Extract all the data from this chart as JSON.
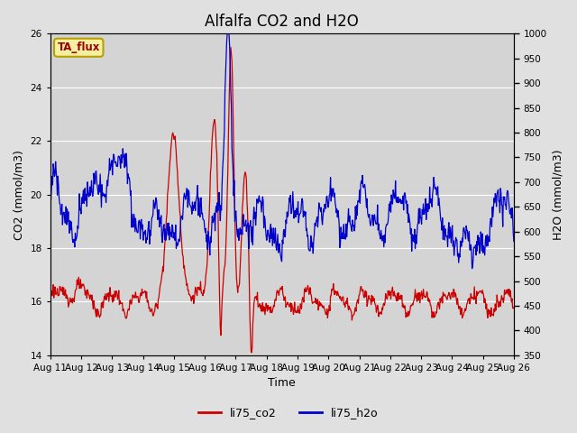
{
  "title": "Alfalfa CO2 and H2O",
  "xlabel": "Time",
  "ylabel_left": "CO2 (mmol/m3)",
  "ylabel_right": "H2O (mmol/m3)",
  "ylim_left": [
    14,
    26
  ],
  "ylim_right": [
    350,
    1000
  ],
  "yticks_left": [
    14,
    16,
    18,
    20,
    22,
    24,
    26
  ],
  "yticks_right": [
    350,
    400,
    450,
    500,
    550,
    600,
    650,
    700,
    750,
    800,
    850,
    900,
    950,
    1000
  ],
  "xtick_labels": [
    "Aug 11",
    "Aug 12",
    "Aug 13",
    "Aug 14",
    "Aug 15",
    "Aug 16",
    "Aug 17",
    "Aug 18",
    "Aug 19",
    "Aug 20",
    "Aug 21",
    "Aug 22",
    "Aug 23",
    "Aug 24",
    "Aug 25",
    "Aug 26"
  ],
  "color_co2": "#cc0000",
  "color_h2o": "#0000cc",
  "legend_label_co2": "li75_co2",
  "legend_label_h2o": "li75_h2o",
  "watermark_text": "TA_flux",
  "background_color": "#e0e0e0",
  "plot_bg_color": "#d4d4d4",
  "grid_color": "#ffffff",
  "title_fontsize": 12,
  "axis_label_fontsize": 9,
  "tick_fontsize": 7.5
}
